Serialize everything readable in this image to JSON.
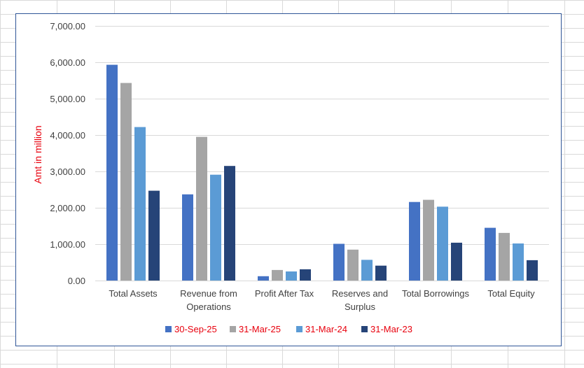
{
  "chart_data": {
    "type": "bar",
    "title": "",
    "xlabel": "",
    "ylabel": "Amt in million",
    "ylim": [
      0,
      7000
    ],
    "yticks": [
      0,
      1000,
      2000,
      3000,
      4000,
      5000,
      6000,
      7000
    ],
    "ytick_labels": [
      "0.00",
      "1,000.00",
      "2,000.00",
      "3,000.00",
      "4,000.00",
      "5,000.00",
      "6,000.00",
      "7,000.00"
    ],
    "grid": true,
    "legend_position": "bottom",
    "categories": [
      [
        "Total Assets"
      ],
      [
        "Revenue from",
        "Operations"
      ],
      [
        "Profit After Tax"
      ],
      [
        "Reserves and",
        "Surplus"
      ],
      [
        "Total Borrowings"
      ],
      [
        "Total Equity"
      ]
    ],
    "series": [
      {
        "name": "30-Sep-25",
        "color": "#4472c4",
        "values": [
          5930,
          2370,
          120,
          1010,
          2160,
          1450
        ]
      },
      {
        "name": "31-Mar-25",
        "color": "#a5a5a5",
        "values": [
          5430,
          3950,
          290,
          850,
          2220,
          1310
        ]
      },
      {
        "name": "31-Mar-24",
        "color": "#5b9bd5",
        "values": [
          4220,
          2910,
          250,
          570,
          2030,
          1020
        ]
      },
      {
        "name": "31-Mar-23",
        "color": "#264478",
        "values": [
          2470,
          3150,
          310,
          410,
          1040,
          560
        ]
      }
    ]
  }
}
